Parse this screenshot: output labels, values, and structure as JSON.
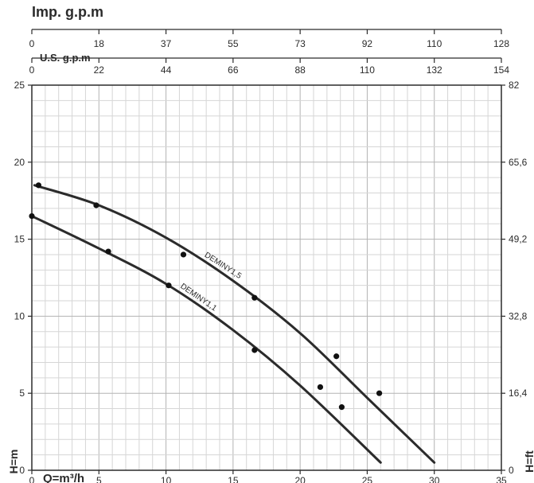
{
  "chart_data": {
    "type": "line",
    "axes": {
      "x_bottom": {
        "label": "Q=m³/h",
        "range": [
          0,
          35
        ],
        "ticks": [
          "0",
          "5",
          "10",
          "15",
          "20",
          "25",
          "30",
          "35"
        ]
      },
      "x_top_us": {
        "label": "U.S. g.p.m",
        "range": [
          0,
          154
        ],
        "ticks": [
          "0",
          "22",
          "44",
          "66",
          "88",
          "110",
          "132",
          "154"
        ]
      },
      "x_top_imp": {
        "label": "Imp. g.p.m",
        "range": [
          0,
          128
        ],
        "ticks": [
          "0",
          "18",
          "37",
          "55",
          "73",
          "92",
          "110",
          "128"
        ]
      },
      "y_left": {
        "label": "H=m",
        "range": [
          0,
          25
        ],
        "ticks": [
          "0",
          "5",
          "10",
          "15",
          "20",
          "25"
        ]
      },
      "y_right": {
        "label": "H=ft",
        "range": [
          0,
          82
        ],
        "ticks": [
          "0",
          "16,4",
          "32,8",
          "49,2",
          "65,6",
          "82"
        ]
      }
    },
    "grid": true,
    "series": [
      {
        "name": "DEMINY1,5",
        "curve": [
          [
            0.2,
            18.5
          ],
          [
            5,
            17.2
          ],
          [
            10,
            15.1
          ],
          [
            15,
            12.3
          ],
          [
            20,
            8.9
          ],
          [
            25,
            4.7
          ],
          [
            30,
            0.5
          ]
        ],
        "points": [
          [
            0.5,
            18.5
          ],
          [
            4.8,
            17.2
          ],
          [
            11.3,
            14.0
          ],
          [
            16.6,
            11.2
          ],
          [
            22.7,
            7.4
          ],
          [
            25.9,
            5.0
          ]
        ]
      },
      {
        "name": "DEMINY1,1",
        "curve": [
          [
            0,
            16.5
          ],
          [
            5,
            14.4
          ],
          [
            10,
            12.1
          ],
          [
            15,
            9.1
          ],
          [
            20,
            5.5
          ],
          [
            26,
            0.5
          ]
        ],
        "points": [
          [
            0,
            16.5
          ],
          [
            5.7,
            14.2
          ],
          [
            10.2,
            12.0
          ],
          [
            16.6,
            7.8
          ],
          [
            21.5,
            5.4
          ],
          [
            23.1,
            4.1
          ]
        ]
      }
    ]
  }
}
